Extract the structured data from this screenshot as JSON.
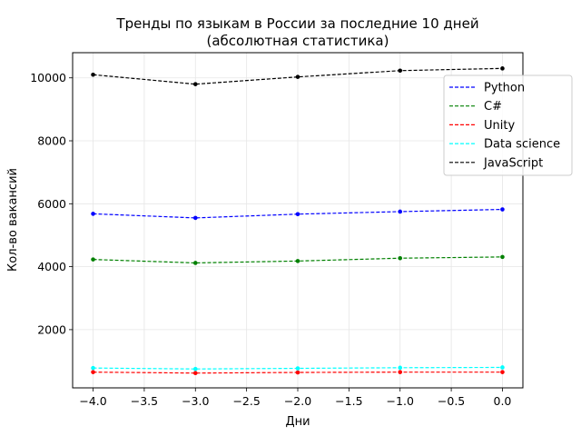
{
  "chart_data": {
    "type": "line",
    "title": "Тренды по языкам в России за последние 10 дней",
    "subtitle": "(абсолютная статистика)",
    "xlabel": "Дни",
    "ylabel": "Кол-во вакансий",
    "xlim": [
      -4.2,
      0.2
    ],
    "ylim": [
      150,
      10800
    ],
    "x": [
      -4.0,
      -3.0,
      -2.0,
      -1.0,
      0.0
    ],
    "x_ticks": [
      -4.0,
      -3.5,
      -3.0,
      -2.5,
      -2.0,
      -1.5,
      -1.0,
      -0.5,
      0.0
    ],
    "x_tick_labels": [
      "−4.0",
      "−3.5",
      "−3.0",
      "−2.5",
      "−2.0",
      "−1.5",
      "−1.0",
      "−0.5",
      "0.0"
    ],
    "y_ticks": [
      2000,
      4000,
      6000,
      8000,
      10000
    ],
    "y_tick_labels": [
      "2000",
      "4000",
      "6000",
      "8000",
      "10000"
    ],
    "grid": true,
    "legend_position": "top-right",
    "series": [
      {
        "name": "Python",
        "color": "#0000ff",
        "values": [
          5680,
          5550,
          5670,
          5750,
          5820
        ]
      },
      {
        "name": "C#",
        "color": "#008000",
        "values": [
          4230,
          4120,
          4180,
          4270,
          4310
        ]
      },
      {
        "name": "Unity",
        "color": "#ff0000",
        "values": [
          650,
          620,
          640,
          650,
          650
        ]
      },
      {
        "name": "Data science",
        "color": "#00ffff",
        "values": [
          780,
          750,
          770,
          790,
          800
        ]
      },
      {
        "name": "JavaScript",
        "color": "#000000",
        "values": [
          10100,
          9800,
          10030,
          10230,
          10300
        ]
      }
    ]
  }
}
